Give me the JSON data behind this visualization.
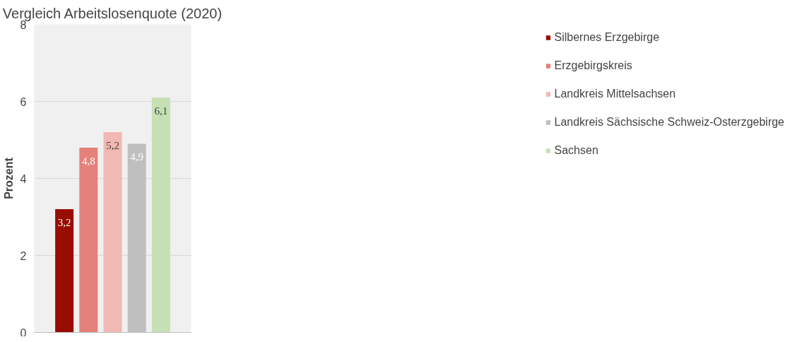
{
  "chart_data": {
    "type": "bar",
    "title": "Vergleich Arbeitslosenquote (2020)",
    "ylabel": "Prozent",
    "categories": [
      null
    ],
    "series": [
      {
        "name": "Silbernes Erzgebirge",
        "color": "#990c00",
        "values": [
          3.2
        ],
        "value_labels": [
          "3,2"
        ]
      },
      {
        "name": "Erzgebirgskreis",
        "color": "#e3817a",
        "values": [
          4.8
        ],
        "value_labels": [
          "4,8"
        ]
      },
      {
        "name": "Landkreis Mittelsachsen",
        "color": "#f2b8b3",
        "values": [
          5.2
        ],
        "value_labels": [
          "5,2"
        ]
      },
      {
        "name": "Landkreis Sächsische Schweiz-Osterzgebirge",
        "color": "#bfbfbf",
        "values": [
          4.9
        ],
        "value_labels": [
          "4,9"
        ]
      },
      {
        "name": "Sachsen",
        "color": "#c6e0b4",
        "values": [
          6.1
        ],
        "value_labels": [
          "6,1"
        ]
      }
    ],
    "ylim": [
      0,
      8
    ],
    "yticks": [
      0,
      2,
      4,
      6,
      8
    ],
    "grid": "y",
    "legend": "right"
  }
}
